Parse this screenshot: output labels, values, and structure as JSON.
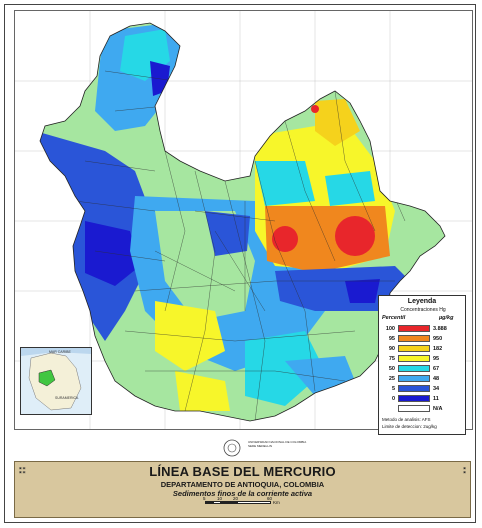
{
  "map": {
    "title": "LÍNEA BASE DEL MERCURIO",
    "subtitle": "DEPARTAMENTO DE ANTIOQUIA, COLOMBIA",
    "subtitle2": "Sedimentos finos de la corriente activa",
    "scale": {
      "ticks": [
        "5",
        "10",
        "20",
        "60"
      ],
      "unit": "Km"
    }
  },
  "legend": {
    "title": "Leyenda",
    "subtitle": "Concentraciones Hg",
    "col_percentile": "Percentil",
    "col_units": "µg/kg",
    "rows": [
      {
        "percentile": "100",
        "value": "3.888",
        "color": "#e8262b"
      },
      {
        "percentile": "95",
        "value": "950",
        "color": "#f0871e"
      },
      {
        "percentile": "90",
        "value": "182",
        "color": "#f5d21c"
      },
      {
        "percentile": "75",
        "value": "95",
        "color": "#f7f62a"
      },
      {
        "percentile": "50",
        "value": "67",
        "color": "#26d8e6"
      },
      {
        "percentile": "25",
        "value": "48",
        "color": "#3fa9f0"
      },
      {
        "percentile": "5",
        "value": "34",
        "color": "#2a55d8"
      },
      {
        "percentile": "0",
        "value": "11",
        "color": "#1a1ad0"
      },
      {
        "percentile": "",
        "value": "N/A",
        "color": "#ffffff"
      }
    ],
    "method": "Metodo de analisis: AFS",
    "detection": "Limite de deteccion: 2ug/kg"
  },
  "inset": {
    "label": "MAR CARIBE",
    "country": "SURAMERICA"
  },
  "institution": {
    "name": "UNIVERSIDAD NACIONAL DE COLOMBIA",
    "campus": "SEDE MEDELLIN"
  },
  "colors": {
    "footer": "#d8c79e",
    "background": "#ffffff",
    "map_green": "#a6e6a0",
    "map_teal": "#37d1c4"
  }
}
